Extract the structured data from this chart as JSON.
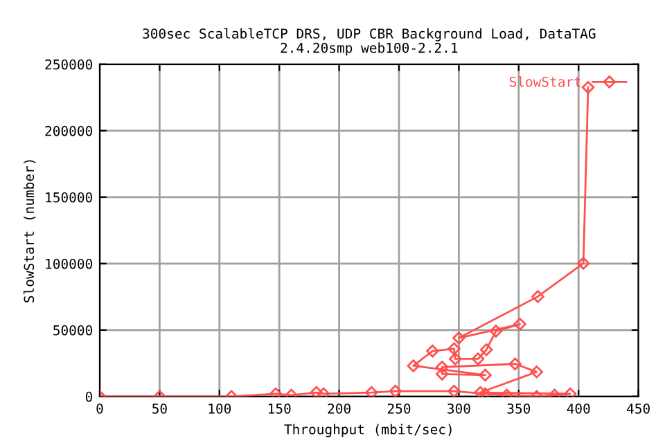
{
  "chart_data": {
    "type": "line",
    "title": "300sec ScalableTCP DRS, UDP CBR Background Load, DataTAG\n2.4.20smp web100-2.2.1",
    "xlabel": "Throughput (mbit/sec)",
    "ylabel": "SlowStart (number)",
    "xlim": [
      0,
      450
    ],
    "ylim": [
      0,
      250000
    ],
    "xticks": [
      0,
      50,
      100,
      150,
      200,
      250,
      300,
      350,
      400,
      450
    ],
    "yticks": [
      0,
      50000,
      100000,
      150000,
      200000,
      250000
    ],
    "grid": true,
    "legend": "top right",
    "marker": "diamond",
    "line_style": "solid",
    "series": [
      {
        "name": "SlowStart",
        "color": "#ff5050",
        "x": [
          0,
          50,
          110,
          147,
          160,
          181,
          187,
          227,
          247,
          296,
          322,
          340,
          365,
          380,
          393,
          318,
          365,
          347,
          286,
          286,
          322,
          262,
          278,
          296,
          297,
          316,
          323,
          331,
          351,
          300,
          366,
          404,
          408
        ],
        "values": [
          0,
          0,
          0,
          2000,
          1000,
          3000,
          2000,
          3000,
          4000,
          4000,
          2000,
          1000,
          0,
          1000,
          2000,
          3000,
          18500,
          24500,
          22100,
          16900,
          16100,
          23100,
          34200,
          35900,
          28300,
          28300,
          35200,
          49200,
          54400,
          44000,
          75200,
          100200,
          232600
        ]
      }
    ]
  }
}
